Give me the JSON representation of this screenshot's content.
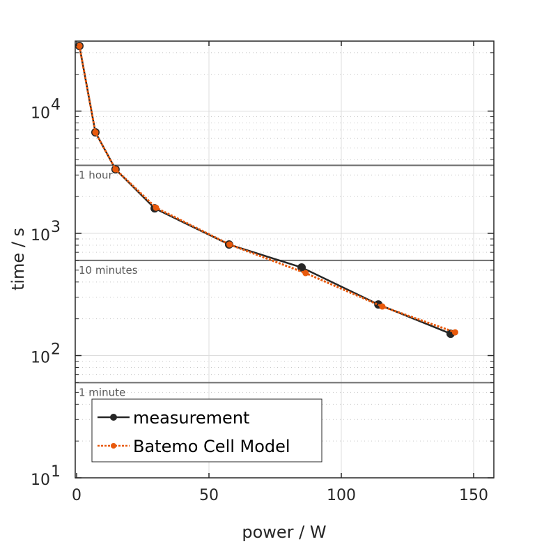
{
  "chart_data": {
    "type": "line",
    "title": "",
    "xlabel": "power / W",
    "ylabel": "time / s",
    "xlim": [
      0,
      157.5
    ],
    "ylim": [
      10,
      37000
    ],
    "yscale": "log",
    "grid": true,
    "x_ticks": [
      0,
      50,
      100,
      150
    ],
    "x_tick_labels": [
      "0",
      "50",
      "100",
      "150"
    ],
    "y_ticks": [
      10,
      100,
      1000,
      10000
    ],
    "y_tick_labels": [
      {
        "base": "10",
        "exp": "1"
      },
      {
        "base": "10",
        "exp": "2"
      },
      {
        "base": "10",
        "exp": "3"
      },
      {
        "base": "10",
        "exp": "4"
      }
    ],
    "reference_lines": [
      {
        "value": 3600,
        "label": "1 hour"
      },
      {
        "value": 600,
        "label": "10 minutes"
      },
      {
        "value": 60,
        "label": "1 minute"
      }
    ],
    "legend_position": "bottom-left",
    "series": [
      {
        "name": "measurement",
        "color": "#262626",
        "style": "solid",
        "x": [
          1.05,
          7.1,
          14.7,
          29.5,
          57.6,
          85.0,
          114.0,
          141.3
        ],
        "y": [
          34100,
          6700,
          3340,
          1600,
          810,
          526,
          262,
          151
        ]
      },
      {
        "name": "Batemo Cell Model",
        "color": "#e8590c",
        "style": "dotted",
        "x": [
          1.05,
          7.1,
          14.7,
          30.0,
          57.8,
          86.5,
          115.5,
          143.0
        ],
        "y": [
          34100,
          6700,
          3340,
          1620,
          810,
          473,
          252,
          155
        ]
      }
    ]
  }
}
